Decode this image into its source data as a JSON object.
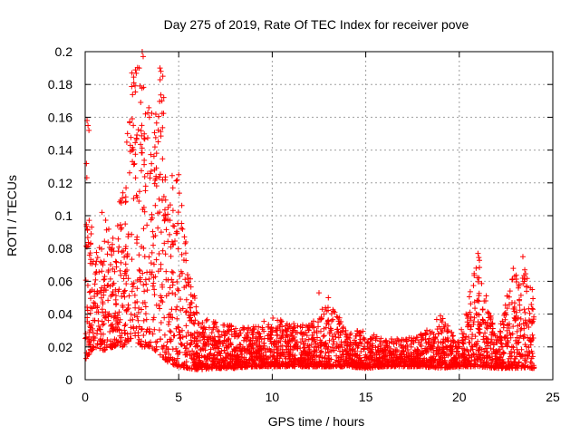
{
  "chart_data": {
    "type": "scatter",
    "title": "Day 275 of 2019, Rate Of TEC Index for receiver pove",
    "xlabel": "GPS time / hours",
    "ylabel": "ROTI / TECUs",
    "xlim": [
      0,
      25
    ],
    "ylim": [
      0,
      0.2
    ],
    "xticks": [
      "0",
      "5",
      "10",
      "15",
      "20",
      "25"
    ],
    "yticks": [
      "0",
      "0.02",
      "0.04",
      "0.06",
      "0.08",
      "0.1",
      "0.12",
      "0.14",
      "0.16",
      "0.18",
      "0.2"
    ],
    "grid": true,
    "marker": "plus",
    "color": "#ff0000",
    "envelope": {
      "x": [
        0,
        0.5,
        1,
        1.5,
        2,
        2.5,
        3,
        3.5,
        4,
        4.5,
        5,
        5.5,
        6,
        7,
        8,
        9,
        10,
        11,
        12,
        13,
        14,
        15,
        16,
        17,
        18,
        19,
        20,
        21,
        22,
        23,
        24
      ],
      "low": [
        0.012,
        0.02,
        0.018,
        0.02,
        0.02,
        0.025,
        0.02,
        0.02,
        0.015,
        0.01,
        0.008,
        0.007,
        0.006,
        0.007,
        0.007,
        0.008,
        0.008,
        0.008,
        0.008,
        0.008,
        0.008,
        0.007,
        0.008,
        0.008,
        0.008,
        0.007,
        0.008,
        0.008,
        0.007,
        0.007,
        0.007
      ],
      "high": [
        0.16,
        0.075,
        0.1,
        0.09,
        0.12,
        0.187,
        0.2,
        0.16,
        0.19,
        0.125,
        0.125,
        0.075,
        0.04,
        0.035,
        0.033,
        0.033,
        0.038,
        0.035,
        0.035,
        0.05,
        0.03,
        0.03,
        0.025,
        0.025,
        0.028,
        0.04,
        0.025,
        0.077,
        0.025,
        0.075,
        0.056
      ]
    },
    "outliers": {
      "x": [
        0.1,
        0.15,
        0.2,
        0.9,
        2.5,
        2.6,
        3.05,
        3.1,
        3.15,
        4.0,
        4.05,
        4.1,
        4.15,
        4.2,
        3.9,
        5.0,
        21.0,
        20.9,
        21.05,
        23.4,
        23.5,
        23.8,
        23.9,
        12.5,
        13.0
      ],
      "y": [
        0.158,
        0.155,
        0.152,
        0.102,
        0.187,
        0.181,
        0.2,
        0.197,
        0.147,
        0.19,
        0.188,
        0.17,
        0.185,
        0.172,
        0.145,
        0.125,
        0.077,
        0.068,
        0.062,
        0.075,
        0.067,
        0.056,
        0.055,
        0.053,
        0.05
      ]
    },
    "count": 3400,
    "seed": 275
  }
}
